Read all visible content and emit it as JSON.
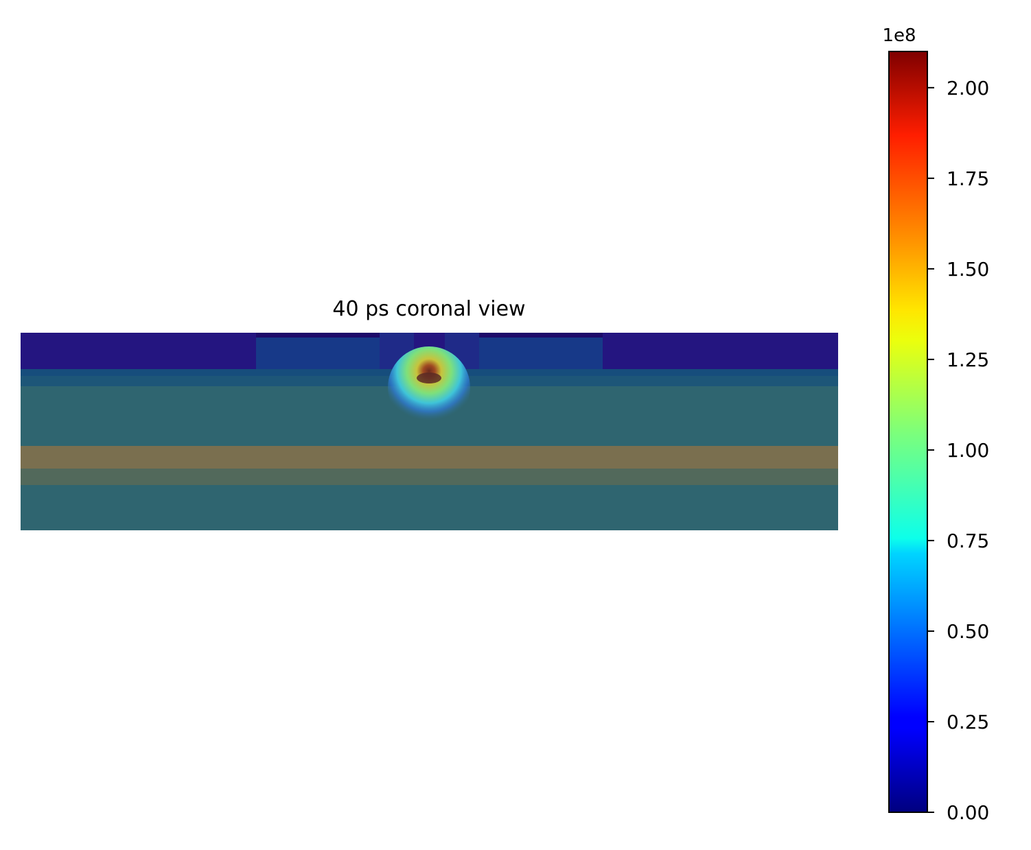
{
  "chart_data": {
    "type": "heatmap",
    "title": "40 ps coronal view",
    "colormap": "jet",
    "colorbar": {
      "offset_label": "1e8",
      "range": [
        0.0,
        2.1
      ],
      "ticks": [
        0.0,
        0.25,
        0.5,
        0.75,
        1.0,
        1.25,
        1.5,
        1.75,
        2.0
      ],
      "tick_labels": [
        "0.00",
        "0.25",
        "0.50",
        "0.75",
        "1.00",
        "1.25",
        "1.50",
        "1.75",
        "2.00"
      ]
    },
    "hotspot_peak_value": 2.1,
    "axes_visible": false
  }
}
